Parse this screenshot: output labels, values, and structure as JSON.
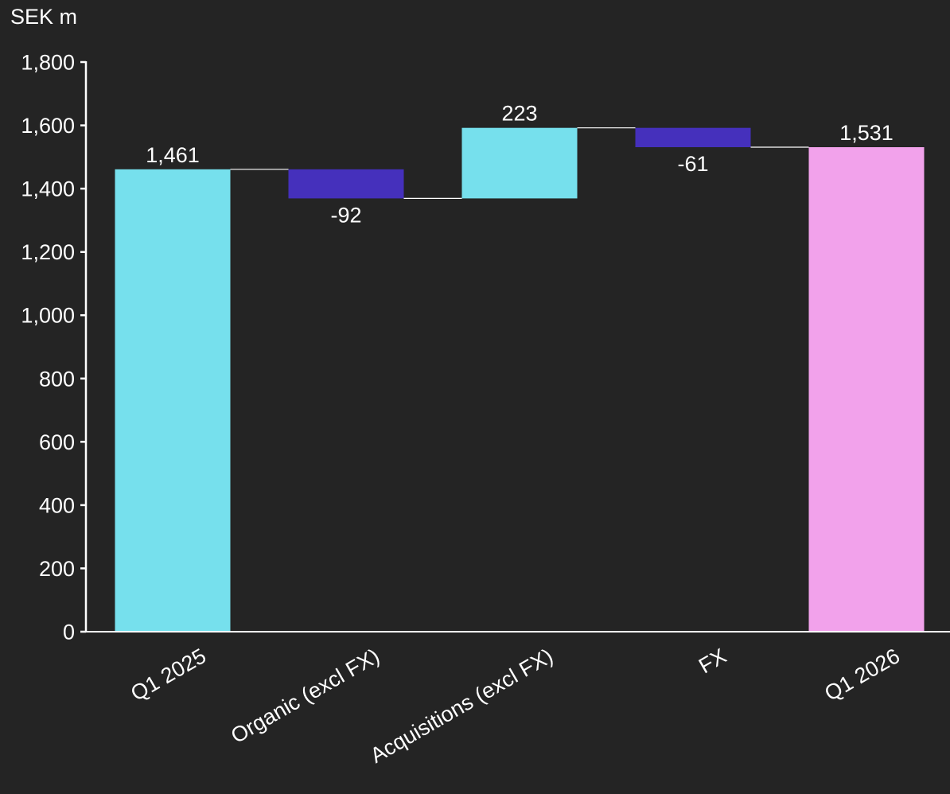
{
  "chart_data": {
    "type": "waterfall",
    "unit_label": "SEK m",
    "categories": [
      "Q1 2025",
      "Organic (excl FX)",
      "Acquisitions (excl FX)",
      "FX",
      "Q1 2026"
    ],
    "values": [
      1461,
      -92,
      223,
      -61,
      1531
    ],
    "bar_kinds": [
      "total",
      "delta",
      "delta",
      "delta",
      "total"
    ],
    "value_labels": [
      "1,461",
      "-92",
      "223",
      "-61",
      "1,531"
    ],
    "ylim": [
      0,
      1800
    ],
    "yticks": [
      0,
      200,
      400,
      600,
      800,
      1000,
      1200,
      1400,
      1600,
      1800
    ],
    "ytick_labels": [
      "0",
      "200",
      "400",
      "600",
      "800",
      "1,000",
      "1,200",
      "1,400",
      "1,600",
      "1,800"
    ],
    "grid": false,
    "colors": {
      "background": "#242424",
      "start_total": "#76e0ed",
      "increase": "#76e0ed",
      "decrease": "#4530bc",
      "end_total": "#f2a2eb",
      "axis": "#ffffff",
      "connector": "#ffffff"
    }
  }
}
